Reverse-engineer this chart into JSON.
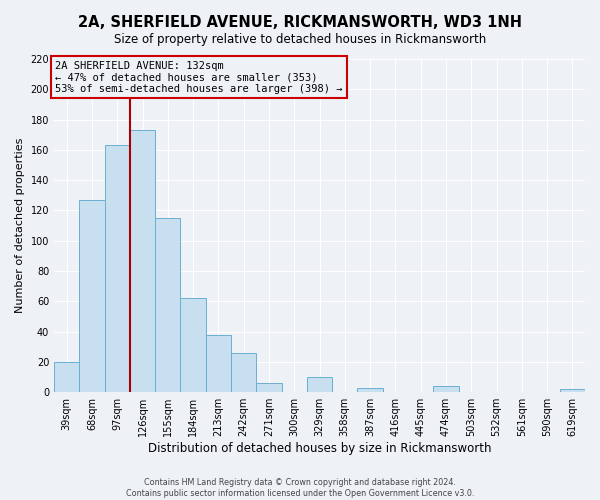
{
  "title": "2A, SHERFIELD AVENUE, RICKMANSWORTH, WD3 1NH",
  "subtitle": "Size of property relative to detached houses in Rickmansworth",
  "xlabel": "Distribution of detached houses by size in Rickmansworth",
  "ylabel": "Number of detached properties",
  "bar_color": "#c8dff0",
  "bar_edge_color": "#6aafd4",
  "categories": [
    "39sqm",
    "68sqm",
    "97sqm",
    "126sqm",
    "155sqm",
    "184sqm",
    "213sqm",
    "242sqm",
    "271sqm",
    "300sqm",
    "329sqm",
    "358sqm",
    "387sqm",
    "416sqm",
    "445sqm",
    "474sqm",
    "503sqm",
    "532sqm",
    "561sqm",
    "590sqm",
    "619sqm"
  ],
  "values": [
    20,
    127,
    163,
    173,
    115,
    62,
    38,
    26,
    6,
    0,
    10,
    0,
    3,
    0,
    0,
    4,
    0,
    0,
    0,
    0,
    2
  ],
  "highlight_index": 3,
  "highlight_line_color": "#aa0000",
  "annotation_title": "2A SHERFIELD AVENUE: 132sqm",
  "annotation_line1": "← 47% of detached houses are smaller (353)",
  "annotation_line2": "53% of semi-detached houses are larger (398) →",
  "annotation_box_edge_color": "#cc0000",
  "ylim": [
    0,
    220
  ],
  "yticks": [
    0,
    20,
    40,
    60,
    80,
    100,
    120,
    140,
    160,
    180,
    200,
    220
  ],
  "footer_line1": "Contains HM Land Registry data © Crown copyright and database right 2024.",
  "footer_line2": "Contains public sector information licensed under the Open Government Licence v3.0.",
  "background_color": "#eef2f7",
  "grid_color": "#ffffff",
  "title_fontsize": 10.5,
  "subtitle_fontsize": 8.5,
  "ylabel_fontsize": 8,
  "xlabel_fontsize": 8.5,
  "tick_fontsize": 7,
  "footer_fontsize": 5.8
}
